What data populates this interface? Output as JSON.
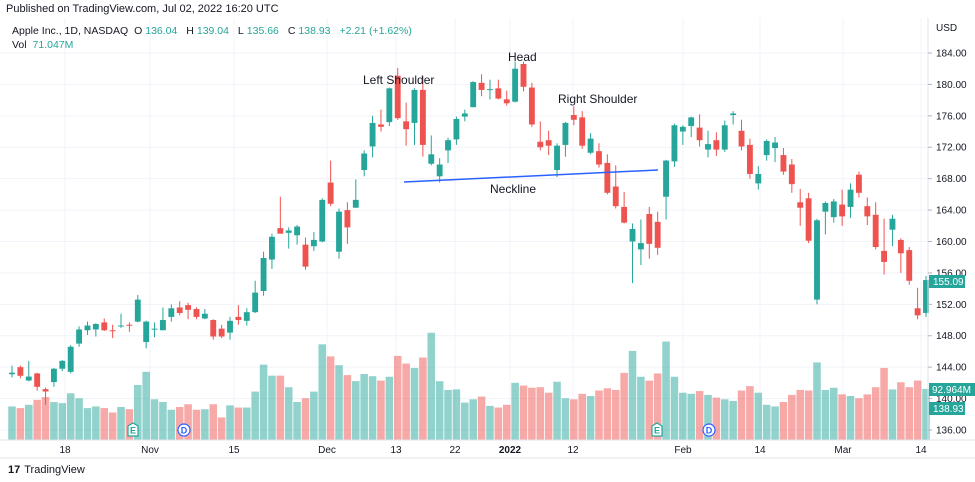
{
  "published": "Published on TradingView.com, Jul 02, 2022 16:20 UTC",
  "legend": {
    "symbol": "Apple Inc., 1D, NASDAQ",
    "o_label": "O",
    "o": "136.04",
    "h_label": "H",
    "h": "139.04",
    "l_label": "L",
    "l": "135.66",
    "c_label": "C",
    "c": "138.93",
    "change": "+2.21 (+1.62%)",
    "vol_label": "Vol",
    "vol": "71.047M"
  },
  "colors": {
    "up": "#26a69a",
    "down": "#ef5350",
    "neckline": "#2962ff",
    "badge": "#26a69a"
  },
  "annotations": {
    "left_shoulder": "Left Shoulder",
    "head": "Head",
    "right_shoulder": "Right Shoulder",
    "neckline": "Neckline"
  },
  "price_axis": {
    "currency": "USD",
    "ticks": [
      "184.00",
      "180.00",
      "176.00",
      "172.00",
      "168.00",
      "164.00",
      "160.00",
      "156.00",
      "152.00",
      "148.00",
      "144.00",
      "140.00",
      "136.00"
    ],
    "last_price": "155.09",
    "volume_badge": "92.964M",
    "close_badge": "138.93"
  },
  "time_axis": {
    "ticks": [
      "18",
      "Nov",
      "15",
      "Dec",
      "13",
      "22",
      "2022",
      "12",
      "Feb",
      "14",
      "Mar",
      "14"
    ]
  },
  "events": [
    "E",
    "D",
    "E",
    "D"
  ],
  "footer": {
    "brand": "TradingView"
  },
  "chart_data": {
    "type": "candlestick",
    "ylim": [
      134,
      186
    ],
    "open": [
      143.1,
      144.0,
      142.3,
      143.2,
      141.2,
      142.1,
      143.8,
      143.4,
      147.0,
      148.7,
      148.8,
      149.7,
      148.7,
      149.3,
      149.4,
      149.8,
      147.2,
      148.9,
      148.7,
      150.4,
      151.6,
      151.9,
      151.4,
      150.2,
      150.0,
      148.9,
      148.4,
      150.4,
      149.9,
      151.0,
      153.7,
      157.7,
      161.7,
      161.1,
      160.8,
      159.6,
      159.4,
      160.0,
      167.5,
      158.7,
      164.0,
      164.3,
      169.1,
      172.1,
      174.9,
      175.2,
      181.1,
      175.3,
      175.1,
      179.3,
      169.9,
      168.3,
      171.6,
      173.0,
      175.9,
      177.1,
      180.2,
      179.3,
      179.5,
      178.1,
      177.8,
      182.6,
      179.6,
      172.7,
      172.9,
      169.1,
      172.3,
      176.1,
      175.8,
      171.3,
      171.5,
      170.0,
      167.0,
      164.4,
      160.0,
      159.0,
      163.5,
      162.5,
      165.7,
      170.2,
      174.0,
      174.7,
      174.5,
      171.7,
      172.9,
      171.7,
      176.1,
      174.1,
      172.3,
      167.4,
      171.0,
      171.9,
      171.0,
      169.8,
      165.0,
      165.5,
      152.6,
      163.8,
      163.1,
      164.7,
      164.4,
      168.5,
      164.5,
      163.4,
      158.8,
      161.5,
      160.2,
      158.9,
      151.5,
      150.9
    ],
    "high": [
      144.2,
      144.2,
      144.8,
      143.3,
      141.4,
      143.9,
      144.9,
      146.8,
      149.2,
      149.8,
      149.6,
      150.2,
      149.4,
      150.8,
      149.7,
      153.2,
      149.9,
      149.7,
      151.6,
      152.0,
      152.4,
      152.2,
      151.6,
      151.4,
      150.1,
      149.4,
      150.4,
      151.9,
      151.5,
      155.0,
      158.7,
      161.0,
      165.7,
      161.8,
      162.1,
      160.5,
      161.2,
      165.5,
      170.3,
      164.2,
      165.0,
      167.9,
      171.6,
      176.0,
      176.8,
      179.6,
      182.1,
      177.7,
      179.5,
      181.1,
      173.5,
      170.6,
      173.2,
      175.9,
      176.8,
      180.4,
      181.3,
      180.6,
      180.6,
      179.2,
      182.9,
      182.9,
      180.2,
      175.3,
      174.1,
      172.5,
      175.2,
      177.2,
      176.6,
      173.8,
      172.5,
      171.1,
      169.7,
      166.3,
      162.3,
      162.8,
      164.4,
      163.8,
      170.4,
      175.0,
      174.8,
      175.9,
      176.2,
      174.1,
      173.9,
      175.4,
      176.6,
      175.5,
      173.1,
      169.6,
      173.0,
      173.3,
      171.9,
      170.5,
      166.7,
      166.2,
      162.9,
      165.1,
      165.4,
      166.6,
      167.4,
      168.9,
      165.6,
      165.0,
      162.9,
      163.4,
      160.4,
      159.3,
      154.1,
      155.6
    ],
    "low": [
      142.7,
      142.6,
      142.2,
      141.0,
      139.2,
      141.5,
      143.5,
      143.2,
      146.6,
      148.1,
      147.9,
      148.6,
      147.7,
      149.0,
      148.5,
      149.7,
      146.4,
      147.8,
      148.7,
      149.8,
      150.6,
      150.1,
      150.1,
      150.1,
      147.5,
      147.7,
      147.5,
      149.4,
      149.3,
      150.9,
      153.1,
      156.5,
      161.0,
      159.1,
      159.6,
      156.4,
      158.8,
      159.9,
      164.5,
      157.8,
      159.7,
      164.3,
      168.3,
      170.7,
      174.0,
      174.7,
      175.5,
      172.2,
      172.3,
      170.8,
      169.7,
      167.5,
      170.0,
      172.3,
      175.3,
      177.1,
      178.5,
      178.1,
      178.1,
      177.3,
      177.7,
      179.1,
      174.6,
      171.6,
      171.0,
      168.2,
      170.8,
      174.8,
      171.8,
      171.1,
      169.4,
      166.0,
      164.2,
      162.3,
      154.7,
      157.0,
      157.8,
      158.3,
      162.8,
      169.5,
      172.3,
      173.3,
      172.1,
      170.7,
      170.9,
      171.4,
      174.9,
      171.6,
      168.0,
      166.6,
      170.3,
      170.1,
      168.5,
      166.2,
      162.0,
      159.8,
      152.0,
      160.9,
      162.4,
      162.0,
      163.0,
      165.6,
      162.1,
      159.0,
      155.8,
      159.4,
      156.0,
      154.5,
      150.1,
      150.4
    ],
    "close": [
      143.3,
      142.9,
      142.8,
      141.5,
      140.9,
      143.8,
      144.8,
      146.6,
      148.8,
      149.3,
      149.5,
      148.7,
      148.6,
      149.3,
      149.3,
      152.6,
      149.8,
      148.9,
      150.0,
      151.5,
      150.9,
      151.3,
      150.4,
      150.8,
      147.9,
      147.9,
      149.9,
      150.0,
      151.0,
      153.5,
      157.9,
      160.6,
      161.0,
      161.4,
      161.9,
      156.8,
      160.2,
      165.3,
      164.8,
      163.8,
      161.8,
      165.3,
      171.2,
      175.1,
      174.6,
      179.5,
      175.7,
      174.3,
      179.3,
      172.3,
      171.1,
      169.8,
      172.9,
      175.6,
      176.3,
      180.3,
      179.3,
      179.4,
      178.2,
      177.6,
      182.0,
      179.7,
      174.9,
      172.0,
      172.2,
      172.2,
      175.1,
      175.5,
      172.2,
      173.1,
      169.8,
      166.2,
      164.5,
      162.4,
      161.6,
      159.8,
      159.7,
      159.2,
      170.3,
      174.8,
      174.6,
      175.8,
      172.9,
      172.4,
      171.7,
      174.8,
      176.3,
      172.1,
      168.6,
      168.6,
      172.8,
      172.6,
      168.9,
      167.3,
      164.3,
      160.1,
      162.7,
      164.9,
      165.1,
      163.2,
      166.6,
      166.2,
      163.2,
      159.3,
      157.4,
      162.9,
      158.5,
      155.0,
      150.6,
      155.09
    ],
    "volume": [
      61,
      58,
      64,
      73,
      78,
      69,
      67,
      85,
      76,
      58,
      61,
      58,
      50,
      60,
      56,
      100,
      124,
      74,
      69,
      55,
      60,
      65,
      55,
      56,
      65,
      41,
      63,
      59,
      59,
      88,
      137,
      117,
      117,
      96,
      69,
      76,
      88,
      174,
      152,
      136,
      118,
      107,
      120,
      116,
      108,
      115,
      153,
      139,
      131,
      150,
      195,
      107,
      91,
      92,
      68,
      74,
      79,
      62,
      59,
      64,
      104,
      99,
      95,
      96,
      86,
      106,
      76,
      74,
      84,
      80,
      90,
      94,
      91,
      122,
      162,
      115,
      108,
      121,
      179,
      115,
      86,
      84,
      89,
      82,
      77,
      74,
      71,
      90,
      98,
      86,
      64,
      61,
      69,
      82,
      91,
      90,
      141,
      91,
      95,
      83,
      80,
      76,
      83,
      96,
      131,
      92,
      105,
      96,
      108,
      93
    ]
  }
}
